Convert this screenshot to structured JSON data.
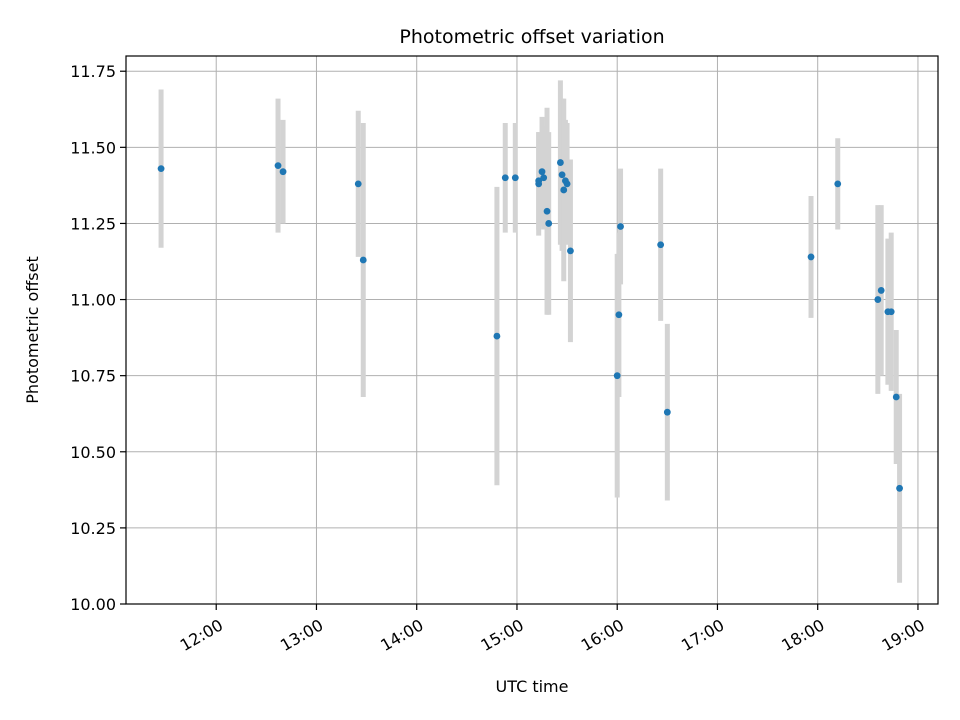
{
  "chart_data": {
    "type": "scatter",
    "title": "Photometric offset variation",
    "xlabel": "UTC time",
    "ylabel": "Photometric offset",
    "xlim": [
      "11:06",
      "19:12"
    ],
    "ylim": [
      10.0,
      11.8
    ],
    "x_ticks": [
      "12:00",
      "13:00",
      "14:00",
      "15:00",
      "16:00",
      "17:00",
      "18:00",
      "19:00"
    ],
    "y_ticks": [
      "10.00",
      "10.25",
      "10.50",
      "10.75",
      "11.00",
      "11.25",
      "11.50",
      "11.75"
    ],
    "grid": true,
    "colors": {
      "point": "#1f77b4",
      "errorbar": "#d3d3d3",
      "grid": "#b0b0b0"
    },
    "points": [
      {
        "x": "11:27",
        "y": 11.43,
        "err": 0.26
      },
      {
        "x": "12:37",
        "y": 11.44,
        "err": 0.22
      },
      {
        "x": "12:40",
        "y": 11.42,
        "err": 0.17
      },
      {
        "x": "13:25",
        "y": 11.38,
        "err": 0.24
      },
      {
        "x": "13:28",
        "y": 11.13,
        "err": 0.45
      },
      {
        "x": "14:48",
        "y": 10.88,
        "err": 0.49
      },
      {
        "x": "14:53",
        "y": 11.4,
        "err": 0.18
      },
      {
        "x": "14:59",
        "y": 11.4,
        "err": 0.18
      },
      {
        "x": "15:13",
        "y": 11.38,
        "err": 0.17
      },
      {
        "x": "15:13",
        "y": 11.39,
        "err": 0.16
      },
      {
        "x": "15:15",
        "y": 11.42,
        "err": 0.18
      },
      {
        "x": "15:16",
        "y": 11.4,
        "err": 0.17
      },
      {
        "x": "15:18",
        "y": 11.29,
        "err": 0.34
      },
      {
        "x": "15:19",
        "y": 11.25,
        "err": 0.3
      },
      {
        "x": "15:26",
        "y": 11.45,
        "err": 0.27
      },
      {
        "x": "15:27",
        "y": 11.41,
        "err": 0.25
      },
      {
        "x": "15:28",
        "y": 11.36,
        "err": 0.3
      },
      {
        "x": "15:29",
        "y": 11.39,
        "err": 0.2
      },
      {
        "x": "15:30",
        "y": 11.38,
        "err": 0.2
      },
      {
        "x": "15:32",
        "y": 11.16,
        "err": 0.3
      },
      {
        "x": "16:00",
        "y": 10.75,
        "err": 0.4
      },
      {
        "x": "16:01",
        "y": 10.95,
        "err": 0.27
      },
      {
        "x": "16:02",
        "y": 11.24,
        "err": 0.19
      },
      {
        "x": "16:26",
        "y": 11.18,
        "err": 0.25
      },
      {
        "x": "16:30",
        "y": 10.63,
        "err": 0.29
      },
      {
        "x": "17:56",
        "y": 11.14,
        "err": 0.2
      },
      {
        "x": "18:12",
        "y": 11.38,
        "err": 0.15
      },
      {
        "x": "18:36",
        "y": 11.0,
        "err": 0.31
      },
      {
        "x": "18:38",
        "y": 11.03,
        "err": 0.28
      },
      {
        "x": "18:42",
        "y": 10.96,
        "err": 0.24
      },
      {
        "x": "18:44",
        "y": 10.96,
        "err": 0.26
      },
      {
        "x": "18:47",
        "y": 10.68,
        "err": 0.22
      },
      {
        "x": "18:49",
        "y": 10.38,
        "err": 0.31
      }
    ]
  }
}
